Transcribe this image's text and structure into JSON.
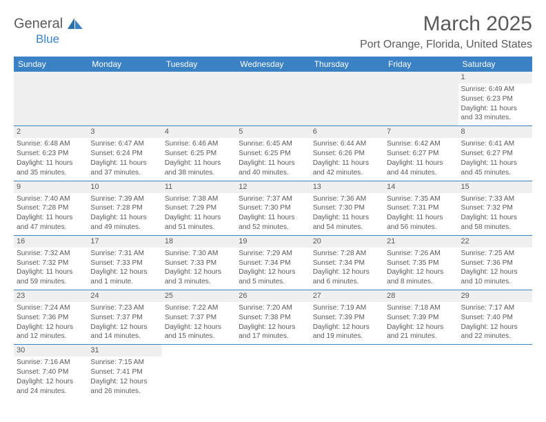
{
  "header": {
    "logo_text_main": "General",
    "logo_text_sub": "Blue",
    "month_title": "March 2025",
    "location": "Port Orange, Florida, United States"
  },
  "colors": {
    "header_bg": "#3b82c4",
    "header_text": "#ffffff",
    "daynum_bg": "#f0f0f0",
    "text": "#5a5a5a",
    "rule": "#3b82c4"
  },
  "weekdays": [
    "Sunday",
    "Monday",
    "Tuesday",
    "Wednesday",
    "Thursday",
    "Friday",
    "Saturday"
  ],
  "layout": {
    "first_weekday_index": 6,
    "days_in_month": 31
  },
  "days": {
    "1": {
      "sunrise": "6:49 AM",
      "sunset": "6:23 PM",
      "daylight": "11 hours and 33 minutes."
    },
    "2": {
      "sunrise": "6:48 AM",
      "sunset": "6:23 PM",
      "daylight": "11 hours and 35 minutes."
    },
    "3": {
      "sunrise": "6:47 AM",
      "sunset": "6:24 PM",
      "daylight": "11 hours and 37 minutes."
    },
    "4": {
      "sunrise": "6:46 AM",
      "sunset": "6:25 PM",
      "daylight": "11 hours and 38 minutes."
    },
    "5": {
      "sunrise": "6:45 AM",
      "sunset": "6:25 PM",
      "daylight": "11 hours and 40 minutes."
    },
    "6": {
      "sunrise": "6:44 AM",
      "sunset": "6:26 PM",
      "daylight": "11 hours and 42 minutes."
    },
    "7": {
      "sunrise": "6:42 AM",
      "sunset": "6:27 PM",
      "daylight": "11 hours and 44 minutes."
    },
    "8": {
      "sunrise": "6:41 AM",
      "sunset": "6:27 PM",
      "daylight": "11 hours and 45 minutes."
    },
    "9": {
      "sunrise": "7:40 AM",
      "sunset": "7:28 PM",
      "daylight": "11 hours and 47 minutes."
    },
    "10": {
      "sunrise": "7:39 AM",
      "sunset": "7:28 PM",
      "daylight": "11 hours and 49 minutes."
    },
    "11": {
      "sunrise": "7:38 AM",
      "sunset": "7:29 PM",
      "daylight": "11 hours and 51 minutes."
    },
    "12": {
      "sunrise": "7:37 AM",
      "sunset": "7:30 PM",
      "daylight": "11 hours and 52 minutes."
    },
    "13": {
      "sunrise": "7:36 AM",
      "sunset": "7:30 PM",
      "daylight": "11 hours and 54 minutes."
    },
    "14": {
      "sunrise": "7:35 AM",
      "sunset": "7:31 PM",
      "daylight": "11 hours and 56 minutes."
    },
    "15": {
      "sunrise": "7:33 AM",
      "sunset": "7:32 PM",
      "daylight": "11 hours and 58 minutes."
    },
    "16": {
      "sunrise": "7:32 AM",
      "sunset": "7:32 PM",
      "daylight": "11 hours and 59 minutes."
    },
    "17": {
      "sunrise": "7:31 AM",
      "sunset": "7:33 PM",
      "daylight": "12 hours and 1 minute."
    },
    "18": {
      "sunrise": "7:30 AM",
      "sunset": "7:33 PM",
      "daylight": "12 hours and 3 minutes."
    },
    "19": {
      "sunrise": "7:29 AM",
      "sunset": "7:34 PM",
      "daylight": "12 hours and 5 minutes."
    },
    "20": {
      "sunrise": "7:28 AM",
      "sunset": "7:34 PM",
      "daylight": "12 hours and 6 minutes."
    },
    "21": {
      "sunrise": "7:26 AM",
      "sunset": "7:35 PM",
      "daylight": "12 hours and 8 minutes."
    },
    "22": {
      "sunrise": "7:25 AM",
      "sunset": "7:36 PM",
      "daylight": "12 hours and 10 minutes."
    },
    "23": {
      "sunrise": "7:24 AM",
      "sunset": "7:36 PM",
      "daylight": "12 hours and 12 minutes."
    },
    "24": {
      "sunrise": "7:23 AM",
      "sunset": "7:37 PM",
      "daylight": "12 hours and 14 minutes."
    },
    "25": {
      "sunrise": "7:22 AM",
      "sunset": "7:37 PM",
      "daylight": "12 hours and 15 minutes."
    },
    "26": {
      "sunrise": "7:20 AM",
      "sunset": "7:38 PM",
      "daylight": "12 hours and 17 minutes."
    },
    "27": {
      "sunrise": "7:19 AM",
      "sunset": "7:39 PM",
      "daylight": "12 hours and 19 minutes."
    },
    "28": {
      "sunrise": "7:18 AM",
      "sunset": "7:39 PM",
      "daylight": "12 hours and 21 minutes."
    },
    "29": {
      "sunrise": "7:17 AM",
      "sunset": "7:40 PM",
      "daylight": "12 hours and 22 minutes."
    },
    "30": {
      "sunrise": "7:16 AM",
      "sunset": "7:40 PM",
      "daylight": "12 hours and 24 minutes."
    },
    "31": {
      "sunrise": "7:15 AM",
      "sunset": "7:41 PM",
      "daylight": "12 hours and 26 minutes."
    }
  },
  "labels": {
    "sunrise_prefix": "Sunrise: ",
    "sunset_prefix": "Sunset: ",
    "daylight_prefix": "Daylight: "
  }
}
